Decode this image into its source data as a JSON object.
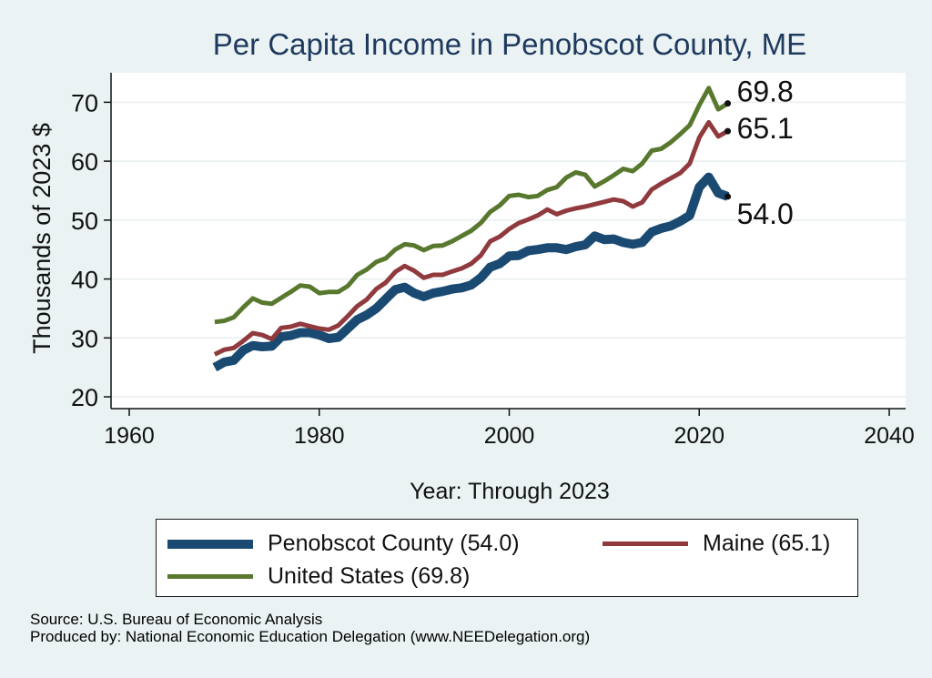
{
  "colors": {
    "background": "#eaf2f3",
    "plot_background": "#ffffff",
    "gridline": "#e8eeef",
    "title": "#1f3a5f",
    "penobscot": "#1a4a72",
    "maine": "#903a3e",
    "us": "#58782e",
    "end_marker": "#111111"
  },
  "legend": {
    "items": [
      {
        "label": "Penobscot County (54.0)",
        "color": "#1a4a72"
      },
      {
        "label": "Maine (65.1)",
        "color": "#903a3e"
      },
      {
        "label": "United States (69.8)",
        "color": "#58782e"
      }
    ]
  },
  "source": {
    "line1": "Source: U.S. Bureau of Economic Analysis",
    "line2": "Produced by: National Economic Education Delegation (www.NEEDelegation.org)"
  },
  "chart_data": {
    "type": "line",
    "title": "Per Capita Income in Penobscot County, ME",
    "xlabel": "Year: Through 2023",
    "ylabel": "Thousands of 2023 $",
    "xlim": [
      1960,
      2040
    ],
    "ylim": [
      18,
      75
    ],
    "xticks": [
      1960,
      1980,
      2000,
      2020,
      2040
    ],
    "yticks": [
      20,
      30,
      40,
      50,
      60,
      70
    ],
    "grid": true,
    "legend_position": "bottom",
    "x": [
      1969,
      1970,
      1971,
      1972,
      1973,
      1974,
      1975,
      1976,
      1977,
      1978,
      1979,
      1980,
      1981,
      1982,
      1983,
      1984,
      1985,
      1986,
      1987,
      1988,
      1989,
      1990,
      1991,
      1992,
      1993,
      1994,
      1995,
      1996,
      1997,
      1998,
      1999,
      2000,
      2001,
      2002,
      2003,
      2004,
      2005,
      2006,
      2007,
      2008,
      2009,
      2010,
      2011,
      2012,
      2013,
      2014,
      2015,
      2016,
      2017,
      2018,
      2019,
      2020,
      2021,
      2022,
      2023
    ],
    "series": [
      {
        "name": "Penobscot County (54.0)",
        "end_label": "54.0",
        "values": [
          25.0,
          25.9,
          26.2,
          27.9,
          28.7,
          28.5,
          28.6,
          30.2,
          30.4,
          30.9,
          30.9,
          30.5,
          29.9,
          30.1,
          31.6,
          33.1,
          33.9,
          35.0,
          36.6,
          38.2,
          38.6,
          37.6,
          37.0,
          37.6,
          37.9,
          38.3,
          38.5,
          39.0,
          40.2,
          42.0,
          42.6,
          43.9,
          44.0,
          44.8,
          45.0,
          45.3,
          45.3,
          45.0,
          45.5,
          45.8,
          47.3,
          46.7,
          46.8,
          46.2,
          45.9,
          46.2,
          48.0,
          48.6,
          49.0,
          49.8,
          50.8,
          55.6,
          57.3,
          54.6,
          54.0
        ]
      },
      {
        "name": "Maine (65.1)",
        "end_label": "65.1",
        "values": [
          27.2,
          28.0,
          28.3,
          29.5,
          30.8,
          30.5,
          29.8,
          31.7,
          31.9,
          32.4,
          32.0,
          31.6,
          31.4,
          32.1,
          33.7,
          35.4,
          36.5,
          38.3,
          39.4,
          41.2,
          42.2,
          41.4,
          40.2,
          40.7,
          40.7,
          41.3,
          41.8,
          42.6,
          44.0,
          46.4,
          47.2,
          48.5,
          49.5,
          50.1,
          50.8,
          51.8,
          51.0,
          51.6,
          52.0,
          52.3,
          52.7,
          53.1,
          53.5,
          53.2,
          52.3,
          53.0,
          55.2,
          56.2,
          57.1,
          58.0,
          59.6,
          64.0,
          66.6,
          64.2,
          65.1
        ]
      },
      {
        "name": "United States (69.8)",
        "end_label": "69.8",
        "values": [
          32.7,
          32.9,
          33.5,
          35.2,
          36.7,
          36.0,
          35.8,
          36.8,
          37.8,
          38.9,
          38.7,
          37.6,
          37.8,
          37.8,
          38.8,
          40.7,
          41.6,
          42.9,
          43.5,
          45.0,
          45.9,
          45.7,
          44.9,
          45.6,
          45.7,
          46.4,
          47.3,
          48.2,
          49.5,
          51.4,
          52.5,
          54.1,
          54.3,
          53.9,
          54.1,
          55.1,
          55.6,
          57.2,
          58.1,
          57.7,
          55.7,
          56.6,
          57.6,
          58.7,
          58.3,
          59.6,
          61.8,
          62.1,
          63.2,
          64.6,
          66.1,
          69.5,
          72.4,
          68.8,
          69.8
        ]
      }
    ]
  }
}
